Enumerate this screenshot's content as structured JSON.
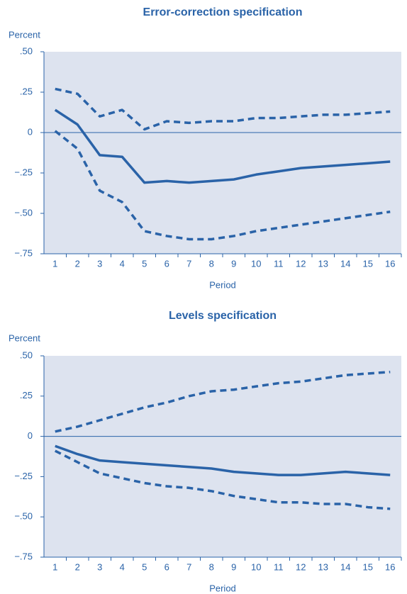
{
  "chart_data": [
    {
      "type": "line",
      "title": "Error-correction specification",
      "y_label": "Percent",
      "x_label": "Period",
      "categories": [
        "1",
        "2",
        "3",
        "4",
        "5",
        "6",
        "7",
        "8",
        "9",
        "10",
        "11",
        "12",
        "13",
        "14",
        "15",
        "16"
      ],
      "ylim": [
        -0.75,
        0.5
      ],
      "yticks": [
        {
          "value": 0.5,
          "label": ".50"
        },
        {
          "value": 0.25,
          "label": ".25"
        },
        0,
        {
          "value": -0.25,
          "label": "−.25"
        },
        {
          "value": -0.5,
          "label": "−.50"
        },
        {
          "value": -0.75,
          "label": "−.75"
        }
      ],
      "zero_line": true,
      "series": [
        {
          "color": "#2a63a8",
          "style": "solid",
          "values": [
            0.14,
            0.05,
            -0.14,
            -0.15,
            -0.31,
            -0.3,
            -0.31,
            -0.3,
            -0.29,
            -0.26,
            -0.24,
            -0.22,
            -0.21,
            -0.2,
            -0.19,
            -0.18
          ]
        },
        {
          "color": "#2a63a8",
          "style": "dashed",
          "values": [
            0.27,
            0.24,
            0.1,
            0.14,
            0.02,
            0.07,
            0.06,
            0.07,
            0.07,
            0.09,
            0.09,
            0.1,
            0.11,
            0.11,
            0.12,
            0.13
          ]
        },
        {
          "color": "#2a63a8",
          "style": "dashed",
          "values": [
            0.01,
            -0.1,
            -0.36,
            -0.43,
            -0.61,
            -0.64,
            -0.66,
            -0.66,
            -0.64,
            -0.61,
            -0.59,
            -0.57,
            -0.55,
            -0.53,
            -0.51,
            -0.49
          ]
        }
      ]
    },
    {
      "type": "line",
      "title": "Levels specification",
      "y_label": "Percent",
      "x_label": "Period",
      "categories": [
        "1",
        "2",
        "3",
        "4",
        "5",
        "6",
        "7",
        "8",
        "9",
        "10",
        "11",
        "12",
        "13",
        "14",
        "15",
        "16"
      ],
      "ylim": [
        -0.75,
        0.5
      ],
      "yticks": [
        {
          "value": 0.5,
          "label": ".50"
        },
        {
          "value": 0.25,
          "label": ".25"
        },
        0,
        {
          "value": -0.25,
          "label": "−.25"
        },
        {
          "value": -0.5,
          "label": "−.50"
        },
        {
          "value": -0.75,
          "label": "−.75"
        }
      ],
      "zero_line": true,
      "series": [
        {
          "color": "#2a63a8",
          "style": "solid",
          "values": [
            -0.06,
            -0.11,
            -0.15,
            -0.16,
            -0.17,
            -0.18,
            -0.19,
            -0.2,
            -0.22,
            -0.23,
            -0.24,
            -0.24,
            -0.23,
            -0.22,
            -0.23,
            -0.24
          ]
        },
        {
          "color": "#2a63a8",
          "style": "dashed",
          "values": [
            0.03,
            0.06,
            0.1,
            0.14,
            0.18,
            0.21,
            0.25,
            0.28,
            0.29,
            0.31,
            0.33,
            0.34,
            0.36,
            0.38,
            0.39,
            0.4
          ]
        },
        {
          "color": "#2a63a8",
          "style": "dashed",
          "values": [
            -0.09,
            -0.16,
            -0.23,
            -0.26,
            -0.29,
            -0.31,
            -0.32,
            -0.34,
            -0.37,
            -0.39,
            -0.41,
            -0.41,
            -0.42,
            -0.42,
            -0.44,
            -0.45
          ]
        }
      ]
    }
  ]
}
